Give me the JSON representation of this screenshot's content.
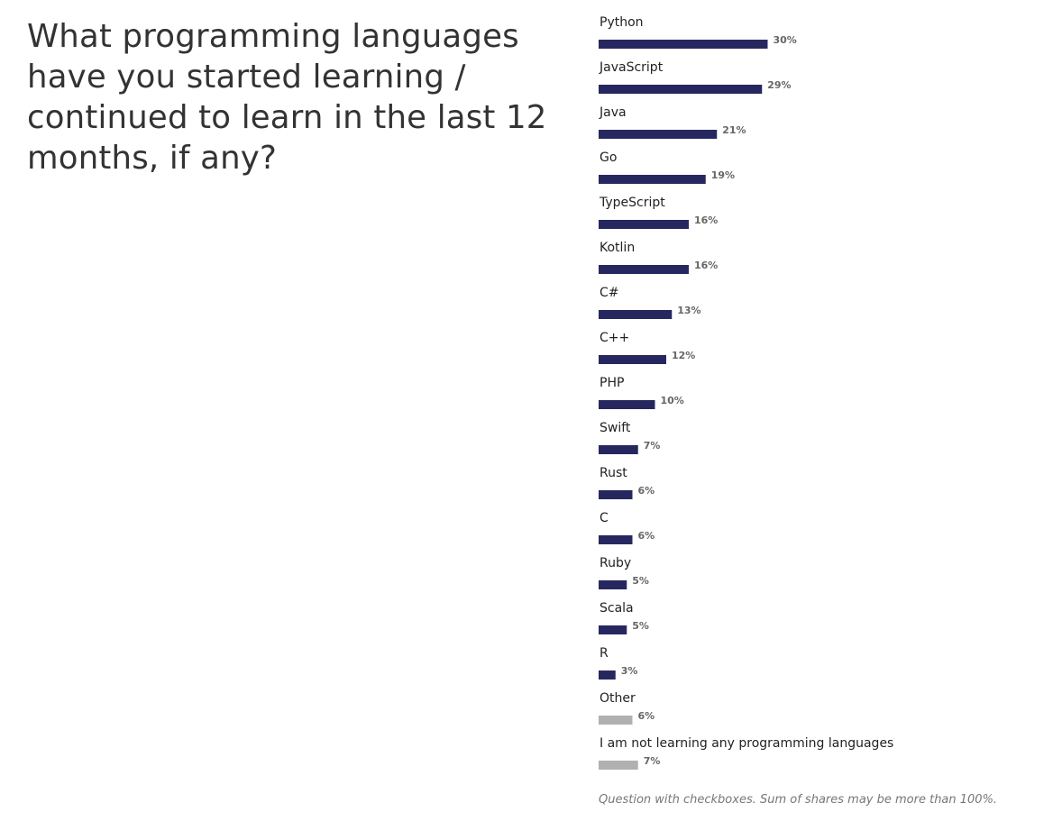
{
  "question": "What programming languages have you started learning / continued to learn in the last 12 months, if any?",
  "footnote": "Question with checkboxes. Sum of shares may be more than 100%.",
  "colors": {
    "main_bar": "#27275f",
    "other_bar": "#b0b0b0"
  },
  "chart_data": {
    "type": "bar",
    "orientation": "horizontal",
    "title": "What programming languages have you started learning / continued to learn in the last 12 months, if any?",
    "unit": "%",
    "xlim": [
      0,
      100
    ],
    "grid": false,
    "legend": "none",
    "categories": [
      "Python",
      "JavaScript",
      "Java",
      "Go",
      "TypeScript",
      "Kotlin",
      "C#",
      "C++",
      "PHP",
      "Swift",
      "Rust",
      "C",
      "Ruby",
      "Scala",
      "R",
      "Other",
      "I am not learning any programming languages"
    ],
    "values": [
      30,
      29,
      21,
      19,
      16,
      16,
      13,
      12,
      10,
      7,
      6,
      6,
      5,
      5,
      3,
      6,
      7
    ],
    "value_labels": [
      "30%",
      "29%",
      "21%",
      "19%",
      "16%",
      "16%",
      "13%",
      "12%",
      "10%",
      "7%",
      "6%",
      "6%",
      "5%",
      "5%",
      "3%",
      "6%",
      "7%"
    ],
    "bar_colors": [
      "#27275f",
      "#27275f",
      "#27275f",
      "#27275f",
      "#27275f",
      "#27275f",
      "#27275f",
      "#27275f",
      "#27275f",
      "#27275f",
      "#27275f",
      "#27275f",
      "#27275f",
      "#27275f",
      "#27275f",
      "#b0b0b0",
      "#b0b0b0"
    ]
  }
}
